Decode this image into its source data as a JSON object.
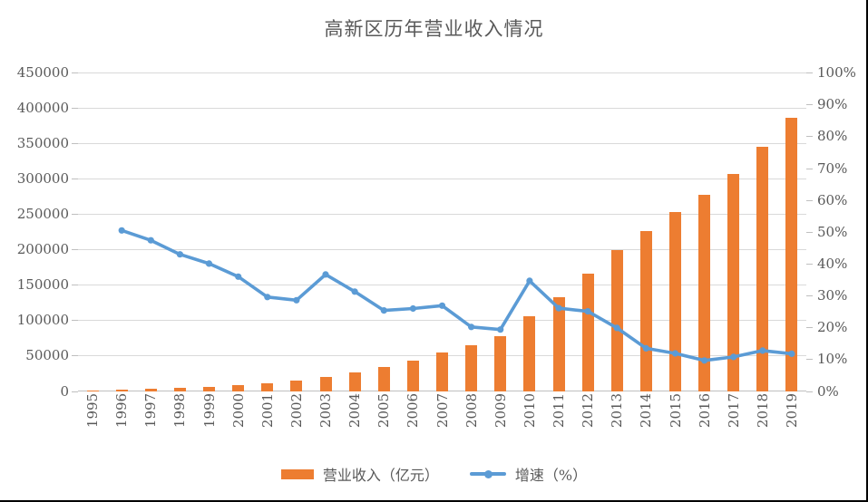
{
  "title": "高新区历年营业收入情况",
  "chart_data": {
    "type": "bar",
    "subtype": "combo-bar-line-dual-axis",
    "title": "高新区历年营业收入情况",
    "categories": [
      "1995",
      "1996",
      "1997",
      "1998",
      "1999",
      "2000",
      "2001",
      "2002",
      "2003",
      "2004",
      "2005",
      "2006",
      "2007",
      "2008",
      "2009",
      "2010",
      "2011",
      "2012",
      "2013",
      "2014",
      "2015",
      "2016",
      "2017",
      "2018",
      "2019"
    ],
    "series": [
      {
        "name": "营业收入（亿元）",
        "type": "bar",
        "axis": "left",
        "color": "#ED7D31",
        "values": [
          1529,
          2300,
          3388,
          4839,
          6775,
          9209,
          11928,
          15326,
          20939,
          27466,
          34416,
          43320,
          54926,
          65986,
          78707,
          105917,
          133435,
          166832,
          199857,
          226591,
          253243,
          277437,
          307216,
          346229,
          386571
        ]
      },
      {
        "name": "增速（%）",
        "type": "line",
        "axis": "right",
        "color": "#5B9BD5",
        "values": [
          null,
          50.4,
          47.3,
          42.9,
          40.0,
          35.9,
          29.5,
          28.5,
          36.6,
          31.2,
          25.3,
          25.9,
          26.8,
          20.1,
          19.3,
          34.6,
          26.0,
          25.0,
          19.8,
          13.4,
          11.8,
          9.6,
          10.7,
          12.7,
          11.7
        ]
      }
    ],
    "left_axis": {
      "min": 0,
      "max": 450000,
      "step": 50000,
      "tick_labels": [
        "0",
        "50000",
        "100000",
        "150000",
        "200000",
        "250000",
        "300000",
        "350000",
        "400000",
        "450000"
      ]
    },
    "right_axis": {
      "min": 0,
      "max": 100,
      "step": 10,
      "tick_labels": [
        "0%",
        "10%",
        "20%",
        "30%",
        "40%",
        "50%",
        "60%",
        "70%",
        "80%",
        "90%",
        "100%"
      ]
    },
    "grid": "horizontal",
    "legend_position": "bottom"
  },
  "legend": {
    "items": [
      {
        "label": "营业收入（亿元）",
        "swatch": "bar",
        "color": "#ED7D31"
      },
      {
        "label": "增速（%）",
        "swatch": "line",
        "color": "#5B9BD5"
      }
    ]
  },
  "colors": {
    "bar": "#ED7D31",
    "line": "#5B9BD5",
    "grid": "#D9D9D9",
    "axis_line": "#BFBFBF",
    "text": "#595959"
  }
}
